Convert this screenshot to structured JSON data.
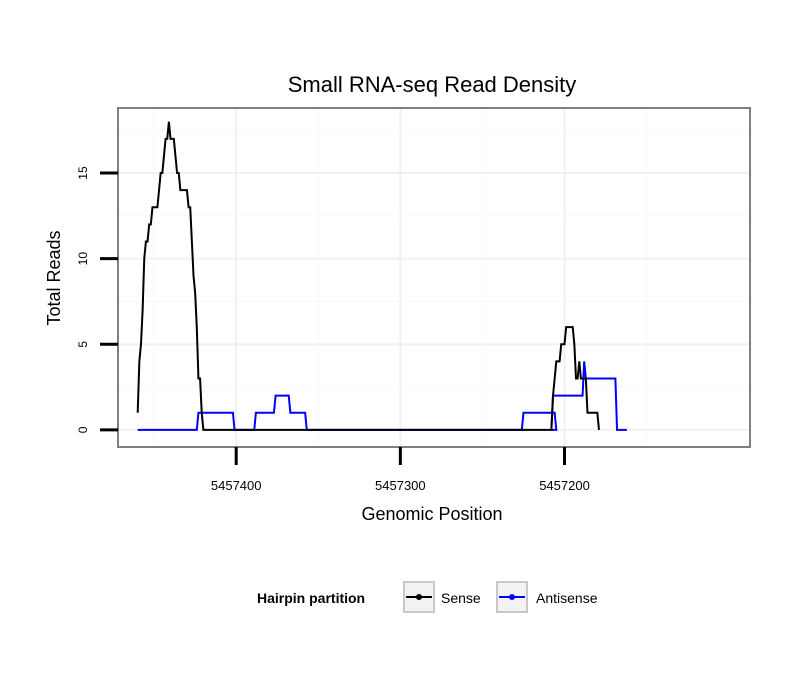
{
  "chart_data": {
    "type": "line",
    "title": "Small RNA-seq Read Density",
    "xlabel": "Genomic Position",
    "ylabel": "Total Reads",
    "x_reversed": true,
    "xlim": [
      5457472,
      5457087
    ],
    "ylim": [
      -1,
      18.8
    ],
    "x_ticks": [
      5457400,
      5457300,
      5457200
    ],
    "x_tick_labels": [
      "5457400",
      "5457300",
      "5457200"
    ],
    "y_ticks": [
      0,
      5,
      10,
      15
    ],
    "y_tick_labels": [
      "0",
      "5",
      "10",
      "15"
    ],
    "grid": true,
    "legend": {
      "title": "Hairpin partition",
      "position": "bottom",
      "entries": [
        "Sense",
        "Antisense"
      ]
    },
    "series": [
      {
        "name": "Sense",
        "color": "#000000",
        "points": [
          [
            5457460,
            1
          ],
          [
            5457459,
            4
          ],
          [
            5457458,
            5
          ],
          [
            5457457,
            7
          ],
          [
            5457456,
            10
          ],
          [
            5457455,
            11
          ],
          [
            5457454,
            11
          ],
          [
            5457453,
            12
          ],
          [
            5457452,
            12
          ],
          [
            5457451,
            13
          ],
          [
            5457448,
            13
          ],
          [
            5457447,
            14
          ],
          [
            5457446,
            15
          ],
          [
            5457445,
            15
          ],
          [
            5457444,
            16
          ],
          [
            5457443,
            17
          ],
          [
            5457442,
            17
          ],
          [
            5457441,
            18
          ],
          [
            5457440,
            17
          ],
          [
            5457438,
            17
          ],
          [
            5457437,
            16
          ],
          [
            5457436,
            15
          ],
          [
            5457435,
            15
          ],
          [
            5457434,
            14
          ],
          [
            5457430,
            14
          ],
          [
            5457429,
            13
          ],
          [
            5457428,
            13
          ],
          [
            5457427,
            11
          ],
          [
            5457426,
            9
          ],
          [
            5457425,
            8
          ],
          [
            5457424,
            6
          ],
          [
            5457423,
            3
          ],
          [
            5457422,
            3
          ],
          [
            5457421,
            1
          ],
          [
            5457420,
            0
          ],
          [
            5457208,
            0
          ],
          [
            5457207,
            2
          ],
          [
            5457206,
            3
          ],
          [
            5457205,
            4
          ],
          [
            5457203,
            4
          ],
          [
            5457202,
            5
          ],
          [
            5457200,
            5
          ],
          [
            5457199,
            6
          ],
          [
            5457195,
            6
          ],
          [
            5457194,
            5
          ],
          [
            5457193,
            3
          ],
          [
            5457192,
            3
          ],
          [
            5457191,
            4
          ],
          [
            5457190,
            3
          ],
          [
            5457187,
            3
          ],
          [
            5457186,
            1
          ],
          [
            5457180,
            1
          ],
          [
            5457179,
            0
          ]
        ]
      },
      {
        "name": "Antisense",
        "color": "#0000ff",
        "points": [
          [
            5457460,
            0
          ],
          [
            5457424,
            0
          ],
          [
            5457423,
            1
          ],
          [
            5457402,
            1
          ],
          [
            5457401,
            0
          ],
          [
            5457389,
            0
          ],
          [
            5457388,
            1
          ],
          [
            5457377,
            1
          ],
          [
            5457376,
            2
          ],
          [
            5457368,
            2
          ],
          [
            5457367,
            1
          ],
          [
            5457358,
            1
          ],
          [
            5457357,
            0
          ],
          [
            5457226,
            0
          ],
          [
            5457225,
            1
          ],
          [
            5457206,
            1
          ],
          [
            5457205,
            0
          ],
          [
            5457208,
            0
          ],
          [
            5457207,
            2
          ],
          [
            5457189,
            2
          ],
          [
            5457188,
            4
          ],
          [
            5457187,
            3
          ],
          [
            5457169,
            3
          ],
          [
            5457168,
            0
          ],
          [
            5457162,
            0
          ]
        ]
      }
    ]
  }
}
